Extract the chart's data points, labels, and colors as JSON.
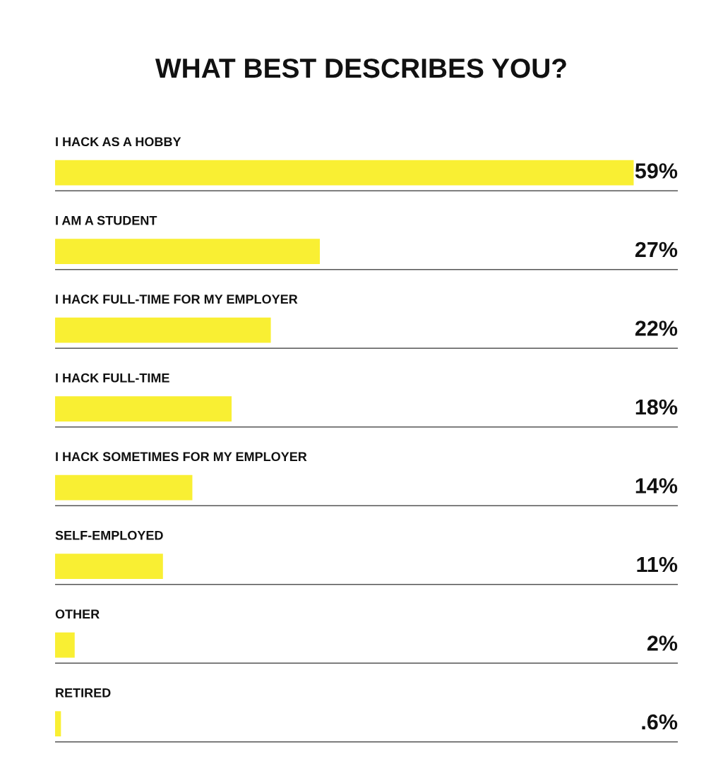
{
  "chart_data": {
    "type": "bar",
    "orientation": "horizontal",
    "title": "WHAT BEST DESCRIBES YOU?",
    "categories": [
      "I HACK AS A HOBBY",
      "I AM A STUDENT",
      "I HACK FULL-TIME FOR MY EMPLOYER",
      "I HACK FULL-TIME",
      "I HACK SOMETIMES FOR MY EMPLOYER",
      "SELF-EMPLOYED",
      "OTHER",
      "RETIRED"
    ],
    "values": [
      59,
      27,
      22,
      18,
      14,
      11,
      2,
      0.6
    ],
    "value_labels": [
      "59%",
      "27%",
      "22%",
      "18%",
      "14%",
      "11%",
      "2%",
      ".6%"
    ],
    "color": "#f9ef33",
    "xlim": [
      0,
      63.5
    ],
    "grid": "y",
    "tick_labels": false
  }
}
